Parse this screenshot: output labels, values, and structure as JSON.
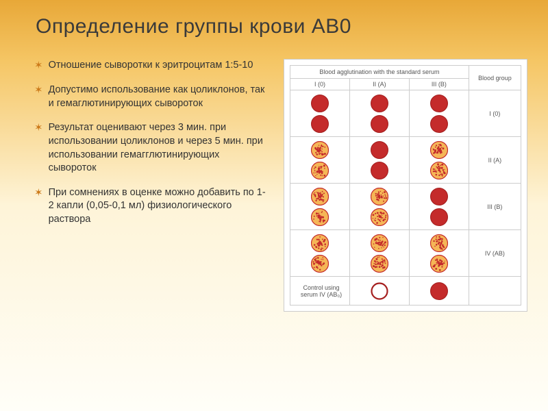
{
  "title": "Определение группы крови AB0",
  "bullets": [
    "Отношение сыворотки к эритроцитам 1:5-10",
    "Допустимо использование как цоликлонов, так и гемаглютинирующих сывороток",
    "Результат оценивают через 3 мин. при использовании цоликлонов и через 5 мин. при использовании гемагглютинирующих сывороток",
    "При сомнениях в оценке можно добавить по 1-2 капли (0,05-0,1 мл) физиологического раствора"
  ],
  "chart": {
    "header_merged": "Blood agglutination with the standard serum",
    "header_right": "Blood group",
    "sub_headers": [
      "I (0)",
      "II (A)",
      "III (B)"
    ],
    "control_label": "Control using serum IV (AB₀)",
    "control_blood_label": "",
    "dot_diameter": 26,
    "colors": {
      "solid_red": "#c42b2b",
      "solid_red_dark": "#a51f1f",
      "agglut_outer": "#c42b2b",
      "agglut_inner": "#f5b657",
      "ring_stroke": "#a51f1f"
    },
    "rows": [
      {
        "label": "I (0)",
        "cells": [
          "solid",
          "solid",
          "solid"
        ]
      },
      {
        "label": "II (A)",
        "cells": [
          "agglut",
          "solid",
          "agglut"
        ]
      },
      {
        "label": "III (B)",
        "cells": [
          "agglut",
          "agglut",
          "solid"
        ]
      },
      {
        "label": "IV (AB)",
        "cells": [
          "agglut",
          "agglut",
          "agglut"
        ]
      }
    ],
    "control_cells": [
      "ring",
      "blank",
      "solid",
      "blank"
    ]
  }
}
